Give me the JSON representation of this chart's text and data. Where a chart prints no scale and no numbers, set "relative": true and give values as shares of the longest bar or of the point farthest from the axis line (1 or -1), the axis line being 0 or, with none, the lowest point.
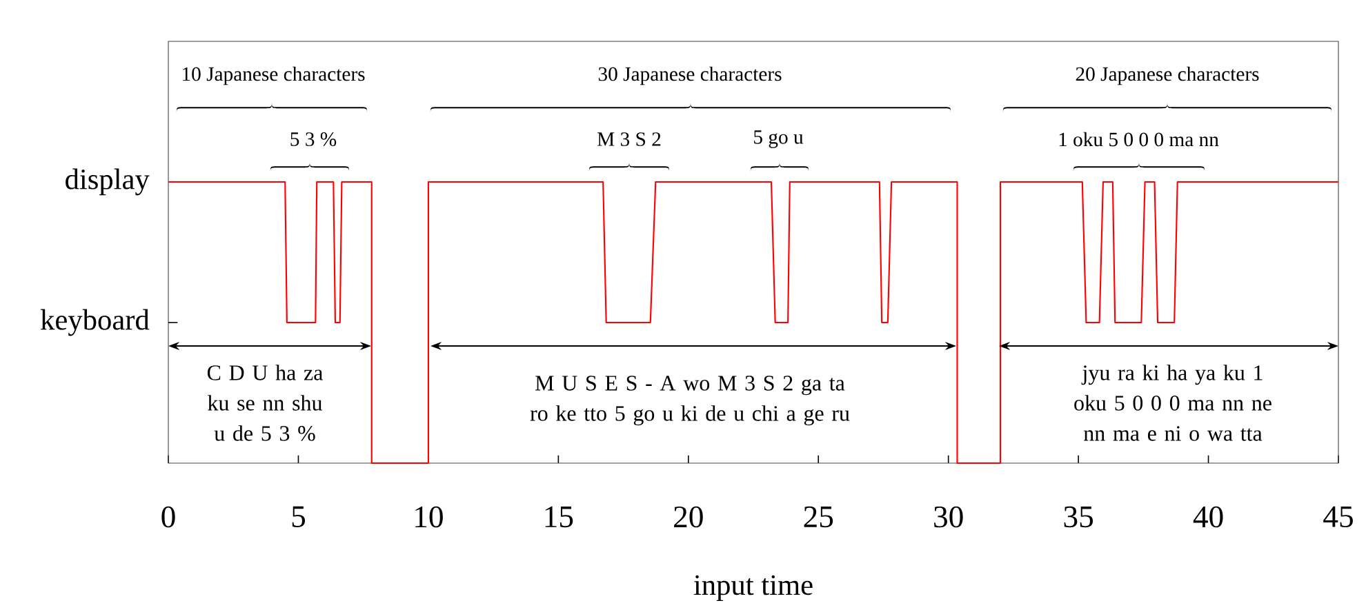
{
  "chart_data": {
    "type": "line",
    "relative": true,
    "xlabel": "input time",
    "x": [
      0,
      4.49,
      4.56,
      5.66,
      5.71,
      6.35,
      6.42,
      6.6,
      6.67,
      7.82,
      7.82,
      10.0,
      10.0,
      16.72,
      16.84,
      18.54,
      18.74,
      23.19,
      23.34,
      23.83,
      23.9,
      27.35,
      27.44,
      27.67,
      27.81,
      30.34,
      30.34,
      32.0,
      32.0,
      35.15,
      35.3,
      35.81,
      35.95,
      36.32,
      36.41,
      37.42,
      37.56,
      37.93,
      38.05,
      38.69,
      38.81,
      45
    ],
    "values": [
      1,
      1,
      0.5,
      0.5,
      1,
      1,
      0.5,
      0.5,
      1,
      1,
      0,
      0,
      1,
      1,
      0.5,
      0.5,
      1,
      1,
      0.5,
      0.5,
      1,
      1,
      0.5,
      0.5,
      1,
      1,
      0,
      0,
      1,
      1,
      0.5,
      0.5,
      1,
      1,
      0.5,
      0.5,
      1,
      1,
      0.5,
      0.5,
      1,
      1
    ],
    "color": "#ff0000",
    "marker": "none",
    "xlim": [
      0,
      45
    ],
    "xticks": [
      0,
      5,
      10,
      15,
      20,
      25,
      30,
      35,
      40,
      45
    ],
    "annotations": [
      "display",
      "keyboard",
      "10 Japanese characters",
      "30 Japanese characters",
      "20 Japanese characters",
      "5 3 %",
      "M 3 S 2",
      "5 go u",
      "1 oku 5 0 0 0 ma nn",
      "C D U ha za ku se nn shu u de 5 3 %",
      "M U S E S - A wo M 3 S 2 ga ta ro ke tto 5 go u ki de u chi a ge ru",
      "jyu ra ki ha ya ku 1 oku 5 0 0 0 ma nn ne nn ma e ni o wa tta"
    ]
  }
}
